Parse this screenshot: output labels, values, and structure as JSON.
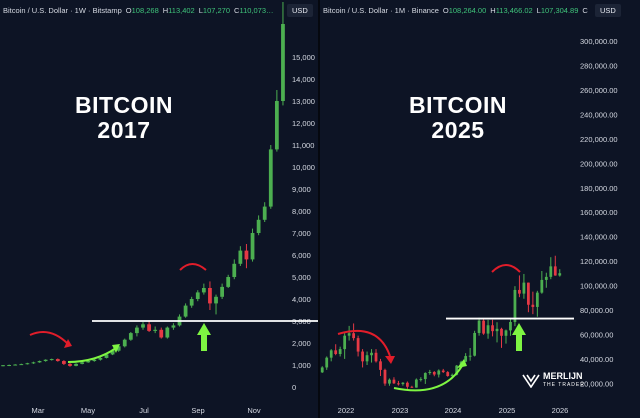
{
  "colors": {
    "up": "#4caf50",
    "down": "#e53945",
    "bg": "#0d1425",
    "text": "#d5d9e2",
    "green_value": "#3fc37a",
    "red_arrow": "#e11d2a",
    "green_arrow": "#7ef542",
    "line": "#ffffff"
  },
  "chart_data": [
    {
      "type": "candlestick",
      "header": {
        "symbol": "Bitcoin / U.S. Dollar · 1W · Bitstamp",
        "open_label": "O",
        "open": "108,268",
        "high_label": "H",
        "high": "113,402",
        "low_label": "L",
        "low": "107,270",
        "close_label": "C",
        "close": "110,073…"
      },
      "currency": "USD",
      "overlay_title_line1": "BITCOIN",
      "overlay_title_line2": "2017",
      "ylim": [
        -500,
        16500
      ],
      "y_ticks": [
        0,
        1000,
        2000,
        3000,
        4000,
        5000,
        6000,
        7000,
        8000,
        9000,
        10000,
        11000,
        12000,
        13000,
        14000,
        15000
      ],
      "y_tick_labels": [
        "0",
        "1,000",
        "2,000",
        "3,000",
        "4,000",
        "5,000",
        "6,000",
        "7,000",
        "8,000",
        "9,000",
        "10,000",
        "11,000",
        "12,000",
        "13,000",
        "14,000",
        "15,000"
      ],
      "x_ticks": [
        "Mar",
        "May",
        "Jul",
        "Sep",
        "Nov"
      ],
      "support_level": 3000,
      "candles": [
        [
          960,
          1000,
          940,
          990
        ],
        [
          990,
          1020,
          950,
          1000
        ],
        [
          1000,
          1040,
          980,
          1020
        ],
        [
          1020,
          1060,
          1000,
          1040
        ],
        [
          1040,
          1100,
          1020,
          1080
        ],
        [
          1080,
          1150,
          1050,
          1120
        ],
        [
          1120,
          1200,
          1100,
          1180
        ],
        [
          1180,
          1260,
          1150,
          1240
        ],
        [
          1240,
          1290,
          1200,
          1270
        ],
        [
          1270,
          1300,
          1150,
          1180
        ],
        [
          1180,
          1220,
          1000,
          1050
        ],
        [
          1050,
          1100,
          920,
          960
        ],
        [
          960,
          1080,
          940,
          1050
        ],
        [
          1050,
          1150,
          1030,
          1120
        ],
        [
          1120,
          1200,
          1100,
          1180
        ],
        [
          1180,
          1260,
          1150,
          1240
        ],
        [
          1240,
          1350,
          1200,
          1320
        ],
        [
          1320,
          1500,
          1300,
          1480
        ],
        [
          1480,
          1700,
          1450,
          1650
        ],
        [
          1650,
          1900,
          1600,
          1850
        ],
        [
          1850,
          2200,
          1800,
          2150
        ],
        [
          2150,
          2500,
          2100,
          2450
        ],
        [
          2450,
          2800,
          2300,
          2700
        ],
        [
          2700,
          2950,
          2600,
          2850
        ],
        [
          2850,
          3000,
          2500,
          2550
        ],
        [
          2550,
          2750,
          2450,
          2600
        ],
        [
          2600,
          2700,
          2200,
          2250
        ],
        [
          2250,
          2750,
          2200,
          2700
        ],
        [
          2700,
          2900,
          2600,
          2800
        ],
        [
          2800,
          3300,
          2750,
          3200
        ],
        [
          3200,
          3800,
          3150,
          3700
        ],
        [
          3700,
          4100,
          3600,
          4000
        ],
        [
          4000,
          4400,
          3900,
          4300
        ],
        [
          4300,
          4700,
          4200,
          4500
        ],
        [
          4500,
          4800,
          3500,
          3800
        ],
        [
          3800,
          4200,
          3300,
          4100
        ],
        [
          4100,
          4700,
          4000,
          4550
        ],
        [
          4550,
          5100,
          4500,
          5000
        ],
        [
          5000,
          5800,
          4900,
          5600
        ],
        [
          5600,
          6400,
          5500,
          6200
        ],
        [
          6200,
          6500,
          5400,
          5800
        ],
        [
          5800,
          7200,
          5700,
          7000
        ],
        [
          7000,
          7800,
          6900,
          7600
        ],
        [
          7600,
          8400,
          7500,
          8200
        ],
        [
          8200,
          11000,
          8100,
          10800
        ],
        [
          10800,
          13500,
          10700,
          13000
        ],
        [
          13000,
          17500,
          12800,
          16500
        ]
      ],
      "annotations": [
        {
          "type": "curved-arrow",
          "color": "red",
          "description": "sweep above range"
        },
        {
          "type": "curved-arrow",
          "color": "green",
          "description": "reclaim"
        },
        {
          "type": "arc",
          "color": "red",
          "description": "local top"
        },
        {
          "type": "up-arrow",
          "color": "green",
          "description": "retest of support"
        }
      ]
    },
    {
      "type": "candlestick",
      "header": {
        "symbol": "Bitcoin / U.S. Dollar · 1M · Binance",
        "open_label": "O",
        "open": "108,264.00",
        "high_label": "H",
        "high": "113,466.02",
        "low_label": "L",
        "low": "107,304.89",
        "close_label": "C",
        "close": ""
      },
      "currency": "USD",
      "overlay_title_line1": "BITCOIN",
      "overlay_title_line2": "2025",
      "ylim": [
        8000,
        314000
      ],
      "y_ticks": [
        20000,
        40000,
        60000,
        80000,
        100000,
        120000,
        140000,
        160000,
        180000,
        200000,
        220000,
        240000,
        260000,
        280000,
        300000
      ],
      "y_tick_labels": [
        "20,000.00",
        "40,000.00",
        "60,000.00",
        "80,000.00",
        "100,000.00",
        "120,000.00",
        "140,000.00",
        "160,000.00",
        "180,000.00",
        "200,000.00",
        "220,000.00",
        "240,000.00",
        "260,000.00",
        "280,000.00",
        "300,000.00"
      ],
      "x_ticks": [
        "2022",
        "2023",
        "2024",
        "2025",
        "2026"
      ],
      "support_level": 73000,
      "candles": [
        [
          29000,
          34000,
          28500,
          33000
        ],
        [
          33000,
          42000,
          31000,
          41000
        ],
        [
          41000,
          48000,
          38000,
          47000
        ],
        [
          47000,
          52000,
          43000,
          44000
        ],
        [
          44000,
          50000,
          42000,
          48000
        ],
        [
          48000,
          61000,
          40000,
          59000
        ],
        [
          59000,
          67000,
          55000,
          61000
        ],
        [
          61000,
          69000,
          55000,
          57000
        ],
        [
          57000,
          59000,
          42000,
          46000
        ],
        [
          46000,
          48000,
          33000,
          38000
        ],
        [
          38000,
          46000,
          35000,
          43000
        ],
        [
          43000,
          48000,
          37000,
          45000
        ],
        [
          45000,
          48000,
          37000,
          38000
        ],
        [
          38000,
          40000,
          26000,
          31000
        ],
        [
          31000,
          32000,
          18000,
          19800
        ],
        [
          19800,
          24000,
          18000,
          23000
        ],
        [
          23000,
          25000,
          19500,
          20000
        ],
        [
          20000,
          22000,
          18200,
          19400
        ],
        [
          19400,
          21000,
          18100,
          20500
        ],
        [
          20500,
          21500,
          15500,
          17200
        ],
        [
          17200,
          18000,
          16200,
          16500
        ],
        [
          16500,
          24000,
          16400,
          23100
        ],
        [
          23100,
          25000,
          21500,
          23500
        ],
        [
          23500,
          29000,
          19500,
          28500
        ],
        [
          28500,
          31000,
          27000,
          29300
        ],
        [
          29300,
          30000,
          25800,
          27200
        ],
        [
          27200,
          31400,
          24800,
          30500
        ],
        [
          30500,
          31800,
          28500,
          29200
        ],
        [
          29200,
          30000,
          25400,
          26000
        ],
        [
          26000,
          28000,
          24900,
          27000
        ],
        [
          27000,
          35000,
          26500,
          34500
        ],
        [
          34500,
          38500,
          34000,
          37700
        ],
        [
          37700,
          44700,
          37500,
          42300
        ],
        [
          42300,
          48900,
          38500,
          42600
        ],
        [
          42600,
          63000,
          42000,
          61200
        ],
        [
          61200,
          73800,
          59000,
          71300
        ],
        [
          71300,
          72700,
          59700,
          60700
        ],
        [
          60700,
          71900,
          56500,
          67500
        ],
        [
          67500,
          72000,
          58400,
          62700
        ],
        [
          62700,
          70000,
          53500,
          64600
        ],
        [
          64600,
          65500,
          49000,
          58900
        ],
        [
          58900,
          64000,
          52500,
          63300
        ],
        [
          63300,
          73600,
          58900,
          70200
        ],
        [
          70200,
          99500,
          66800,
          96400
        ],
        [
          96400,
          108300,
          90500,
          93400
        ],
        [
          93400,
          109500,
          89200,
          102400
        ],
        [
          102400,
          102500,
          78200,
          84300
        ],
        [
          84300,
          95000,
          76600,
          82500
        ],
        [
          82500,
          95700,
          74500,
          94200
        ],
        [
          94200,
          111900,
          93300,
          104600
        ],
        [
          104600,
          110500,
          98200,
          107100
        ],
        [
          107100,
          123200,
          105200,
          115700
        ],
        [
          115700,
          124400,
          108000,
          108200
        ],
        [
          108200,
          113400,
          107300,
          110100
        ]
      ],
      "annotations": [
        {
          "type": "curved-arrow",
          "color": "red",
          "description": "sweep from top"
        },
        {
          "type": "curved-arrow",
          "color": "green",
          "description": "recovery"
        },
        {
          "type": "arc",
          "color": "red",
          "description": "local top"
        },
        {
          "type": "up-arrow",
          "color": "green",
          "description": "retest of support"
        }
      ]
    }
  ],
  "logo": {
    "name": "MERLIJN",
    "tagline": "THE TRADER",
    "icon": "merlijn-logo-icon"
  }
}
